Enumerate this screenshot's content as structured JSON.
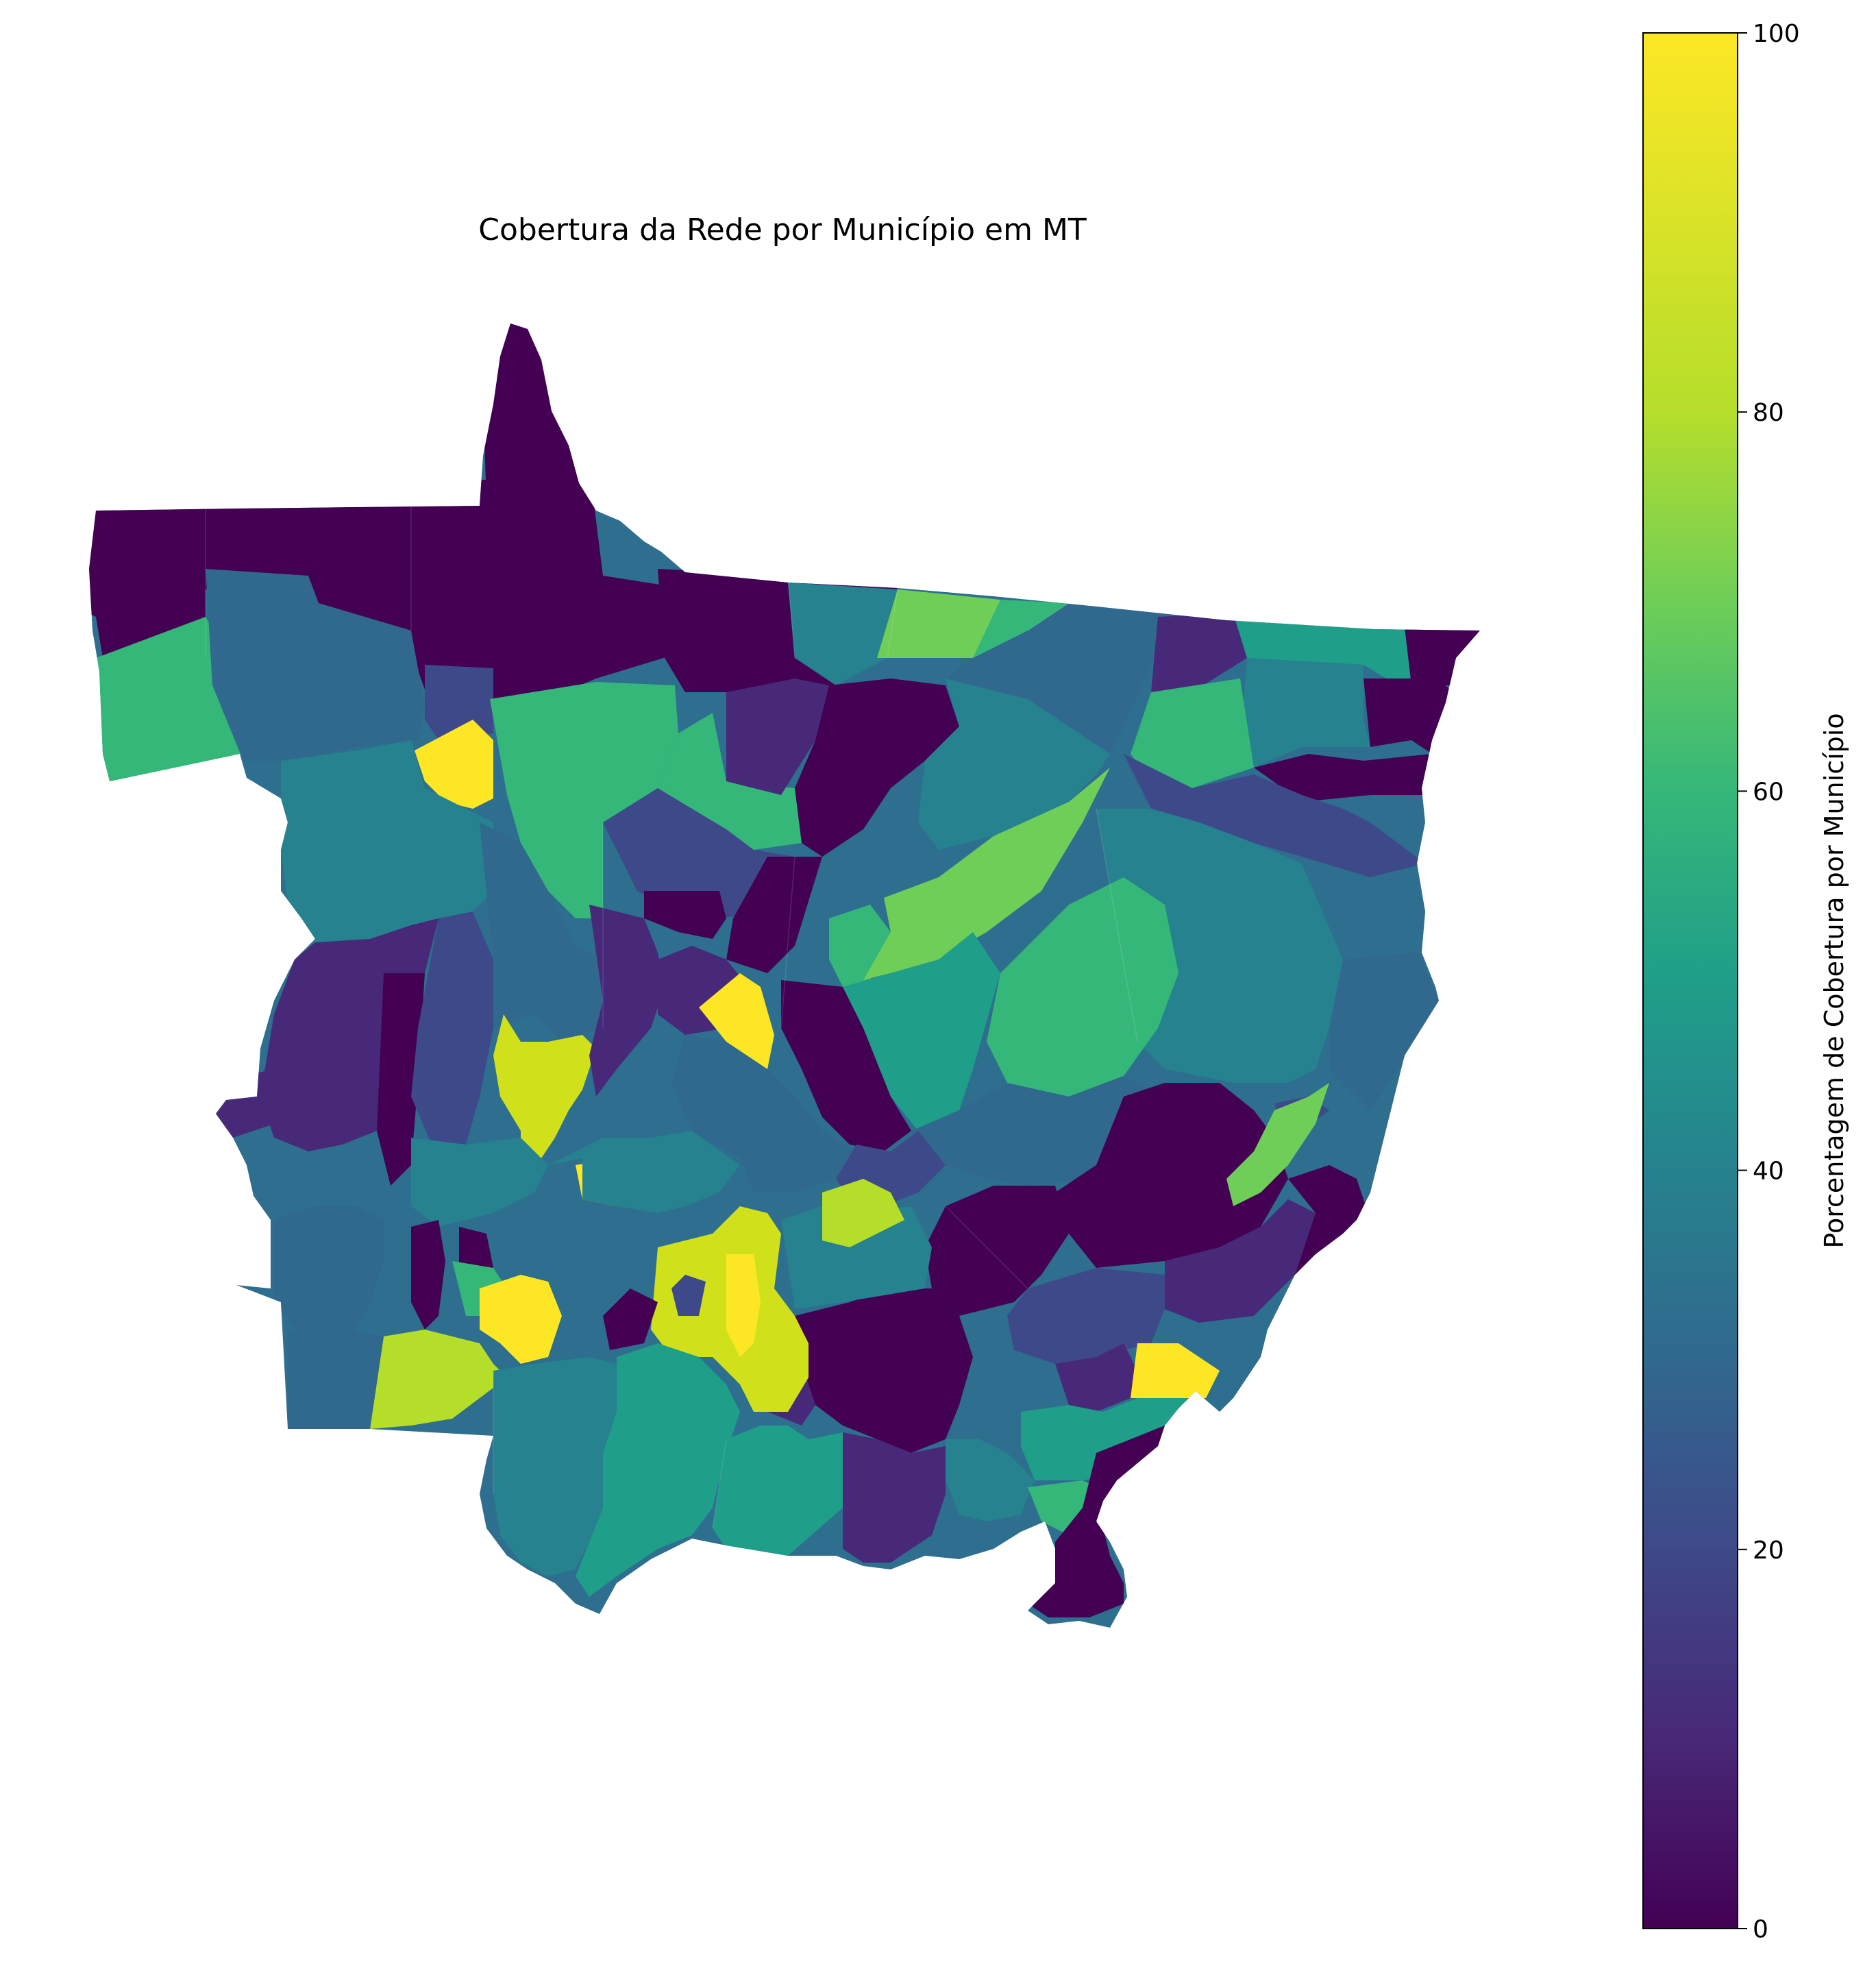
{
  "title": "Cobertura da Rede por Município em MT",
  "colorbar": {
    "label": "Porcentagem de Cobertura por Município",
    "colormap": "viridis",
    "range": [
      0,
      100
    ],
    "ticks": [
      "0",
      "20",
      "40",
      "60",
      "80",
      "100"
    ]
  },
  "map": {
    "state": "MT",
    "value_unit": "percent",
    "value_range": [
      0,
      100
    ]
  },
  "colors": {
    "viridis_0": "#440154",
    "viridis_10": "#482878",
    "viridis_20": "#3e4989",
    "viridis_30": "#31688e",
    "viridis_40": "#26828e",
    "viridis_50": "#1f9e89",
    "viridis_60": "#35b779",
    "viridis_70": "#6ece58",
    "viridis_80": "#b5de2b",
    "viridis_100": "#fde725"
  }
}
